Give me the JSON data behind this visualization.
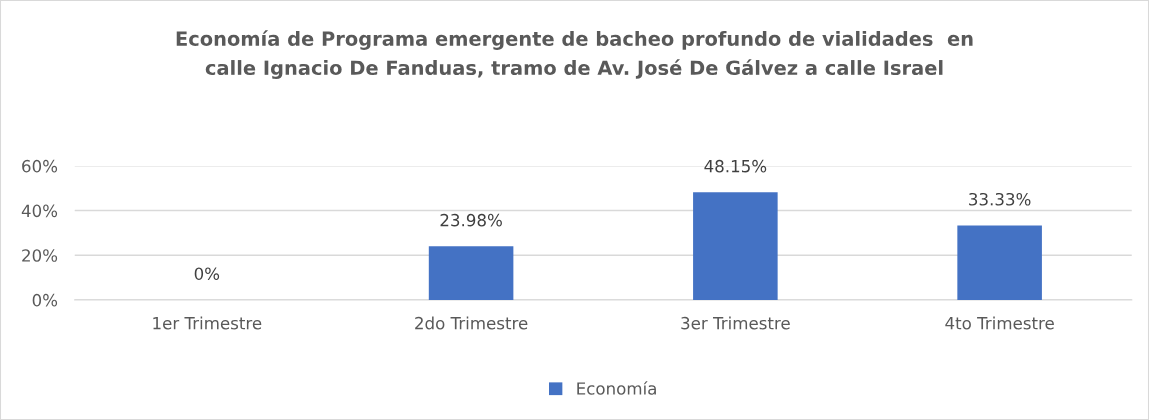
{
  "chart_data": {
    "type": "bar",
    "title": "Economía de Programa emergente de bacheo profundo de vialidades  en\ncalle Ignacio De Fanduas, tramo de Av. José De Gálvez a calle Israel",
    "categories": [
      "1er Trimestre",
      "2do Trimestre",
      "3er Trimestre",
      "4to Trimestre"
    ],
    "series": [
      {
        "name": "Economía",
        "color": "#4472c4",
        "values": [
          0,
          23.98,
          48.15,
          33.33
        ],
        "value_labels": [
          "0%",
          "23.98%",
          "48.15%",
          "33.33%"
        ]
      }
    ],
    "ylim": [
      0,
      60
    ],
    "yticks": [
      {
        "value": 0,
        "label": "0%"
      },
      {
        "value": 20,
        "label": "20%"
      },
      {
        "value": 40,
        "label": "40%"
      },
      {
        "value": 60,
        "label": "60%"
      }
    ],
    "grid": "y",
    "legend": "bottom"
  }
}
